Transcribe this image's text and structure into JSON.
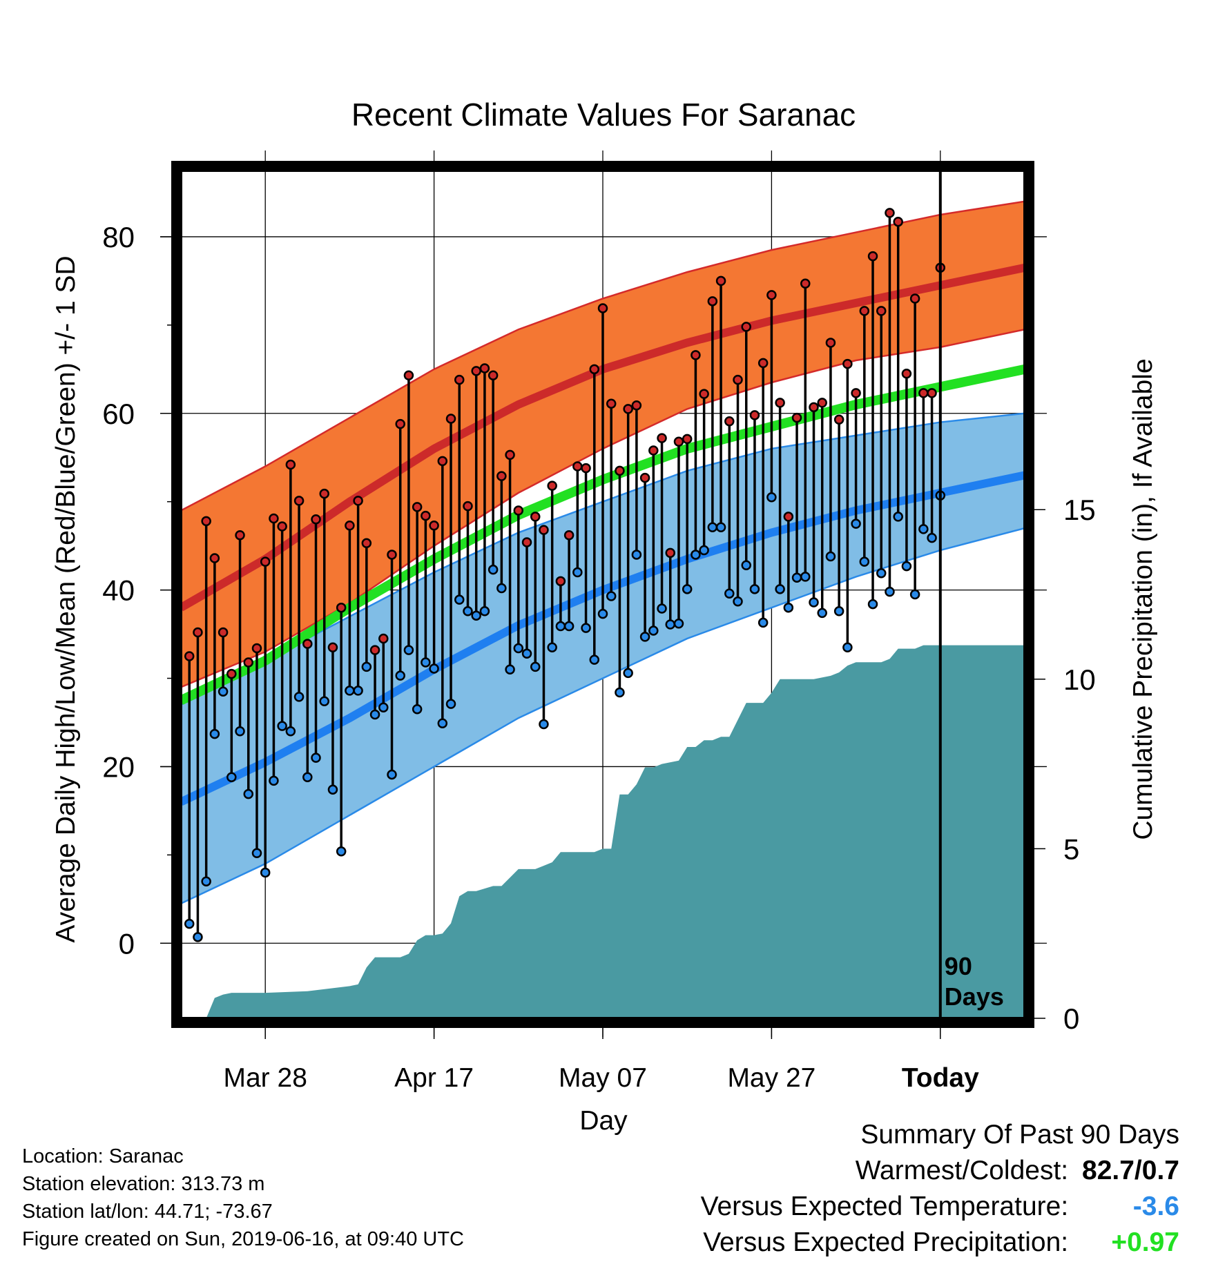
{
  "chart_data": {
    "type": "line",
    "title": "Recent Climate Values For Saranac",
    "xlabel": "Day",
    "ylabel": "Average Daily High/Low/Mean (Red/Blue/Green) +/- 1 SD",
    "y2label": "Cumulative Precipitation (in), If Available",
    "x_range_days": [
      0,
      100
    ],
    "ylim": [
      -8.5,
      87.5
    ],
    "y_ticks": [
      0,
      20,
      40,
      60,
      80
    ],
    "y2lim": [
      0,
      25
    ],
    "y2_ticks": [
      0,
      5,
      10,
      15
    ],
    "x_tick_days": [
      10,
      30,
      50,
      70,
      90
    ],
    "x_tick_labels": [
      "Mar 28",
      "Apr 17",
      "May 07",
      "May 27",
      "Today"
    ],
    "today_day": 90,
    "today_label_line1": "90",
    "today_label_line2": "Days",
    "grid": true,
    "colors": {
      "high_band": "#f47733",
      "high_edge": "#d42a2a",
      "high_mean": "#cc2a2a",
      "low_band": "#80bde6",
      "low_edge": "#2a8ae8",
      "low_mean": "#1f7ff0",
      "mean": "#22e022",
      "precip": "#4a9aa2",
      "high_point": "#cc2a2a",
      "low_point": "#2a8ae8",
      "stem": "#000000",
      "today_line": "#000000"
    },
    "normals_days": [
      0,
      10,
      20,
      30,
      40,
      50,
      60,
      70,
      80,
      90,
      100
    ],
    "normal_high": [
      38.0,
      43.5,
      50.0,
      56.0,
      61.0,
      65.0,
      68.0,
      70.5,
      72.5,
      74.5,
      76.5
    ],
    "normal_high_upper": [
      49.0,
      54.0,
      59.5,
      65.0,
      69.5,
      73.0,
      76.0,
      78.5,
      80.5,
      82.5,
      84.0
    ],
    "normal_high_lower": [
      29.0,
      33.0,
      38.5,
      45.0,
      51.0,
      56.0,
      60.5,
      63.5,
      66.0,
      67.5,
      69.5
    ],
    "normal_mean": [
      27.5,
      32.0,
      38.0,
      43.5,
      48.5,
      52.5,
      56.0,
      58.5,
      61.0,
      63.0,
      65.0
    ],
    "normal_low": [
      16.0,
      20.5,
      25.5,
      31.0,
      36.0,
      40.0,
      43.5,
      46.5,
      49.0,
      51.0,
      53.0
    ],
    "normal_low_upper": [
      27.0,
      32.0,
      37.0,
      42.0,
      46.5,
      50.0,
      53.5,
      56.0,
      57.5,
      59.0,
      60.0
    ],
    "normal_low_lower": [
      4.5,
      9.0,
      14.5,
      20.0,
      25.5,
      30.0,
      34.5,
      38.0,
      41.5,
      44.5,
      47.0
    ],
    "series": [
      {
        "name": "High",
        "x": [
          1,
          2,
          3,
          4,
          5,
          6,
          7,
          8,
          9,
          10,
          11,
          12,
          13,
          14,
          15,
          16,
          17,
          18,
          19,
          20,
          21,
          22,
          23,
          24,
          25,
          26,
          27,
          28,
          29,
          30,
          31,
          32,
          33,
          34,
          35,
          36,
          37,
          38,
          39,
          40,
          41,
          42,
          43,
          44,
          45,
          46,
          47,
          48,
          49,
          50,
          51,
          52,
          53,
          54,
          55,
          56,
          57,
          58,
          59,
          60,
          61,
          62,
          63,
          64,
          65,
          66,
          67,
          68,
          69,
          70,
          71,
          72,
          73,
          74,
          75,
          76,
          77,
          78,
          79,
          80,
          81,
          82,
          83,
          84,
          85,
          86,
          87,
          88,
          89,
          90
        ],
        "values": [
          32.5,
          35.2,
          47.8,
          43.6,
          35.2,
          30.5,
          46.2,
          31.8,
          33.4,
          43.2,
          48.1,
          47.2,
          54.2,
          50.1,
          33.9,
          48.0,
          50.9,
          33.5,
          38.0,
          47.3,
          50.1,
          45.3,
          33.2,
          34.5,
          44.0,
          58.8,
          64.3,
          49.4,
          48.4,
          47.3,
          54.6,
          59.4,
          63.8,
          49.5,
          64.8,
          65.1,
          64.3,
          52.9,
          55.3,
          49.0,
          45.4,
          48.3,
          46.8,
          51.8,
          41.0,
          46.2,
          54.0,
          53.8,
          65.0,
          71.9,
          61.1,
          53.5,
          60.5,
          60.9,
          52.7,
          55.8,
          57.2,
          44.2,
          56.8,
          57.1,
          66.6,
          62.2,
          72.7,
          75.0,
          59.1,
          63.8,
          69.8,
          59.8,
          65.7,
          73.4,
          61.2,
          48.3,
          59.5,
          74.7,
          60.7,
          61.2,
          68.0,
          59.3,
          65.6,
          62.3,
          71.6,
          77.8,
          71.6,
          82.7,
          81.7,
          64.5,
          73.0,
          62.3,
          62.3,
          76.5
        ]
      },
      {
        "name": "Low",
        "x": [
          1,
          2,
          3,
          4,
          5,
          6,
          7,
          8,
          9,
          10,
          11,
          12,
          13,
          14,
          15,
          16,
          17,
          18,
          19,
          20,
          21,
          22,
          23,
          24,
          25,
          26,
          27,
          28,
          29,
          30,
          31,
          32,
          33,
          34,
          35,
          36,
          37,
          38,
          39,
          40,
          41,
          42,
          43,
          44,
          45,
          46,
          47,
          48,
          49,
          50,
          51,
          52,
          53,
          54,
          55,
          56,
          57,
          58,
          59,
          60,
          61,
          62,
          63,
          64,
          65,
          66,
          67,
          68,
          69,
          70,
          71,
          72,
          73,
          74,
          75,
          76,
          77,
          78,
          79,
          80,
          81,
          82,
          83,
          84,
          85,
          86,
          87,
          88,
          89,
          90
        ],
        "values": [
          2.2,
          0.7,
          7.0,
          23.7,
          28.5,
          18.8,
          24.0,
          16.9,
          10.2,
          8.0,
          18.4,
          24.6,
          24.0,
          27.9,
          18.8,
          21.0,
          27.4,
          17.4,
          10.4,
          28.6,
          28.6,
          31.3,
          25.9,
          26.7,
          19.1,
          30.3,
          33.2,
          26.5,
          31.8,
          31.1,
          24.9,
          27.1,
          38.9,
          37.6,
          37.1,
          37.6,
          42.3,
          40.2,
          31.0,
          33.4,
          32.8,
          31.3,
          24.8,
          33.5,
          35.9,
          35.9,
          42.0,
          35.7,
          32.1,
          37.3,
          39.3,
          28.4,
          30.6,
          44.0,
          34.7,
          35.4,
          37.9,
          36.1,
          36.2,
          40.1,
          44.0,
          44.5,
          47.1,
          47.1,
          39.6,
          38.7,
          42.8,
          40.1,
          36.3,
          50.5,
          40.1,
          38.0,
          41.4,
          41.5,
          38.6,
          37.4,
          43.8,
          37.6,
          33.5,
          47.5,
          43.2,
          38.4,
          41.9,
          39.8,
          48.3,
          42.7,
          39.5,
          46.9,
          45.9,
          50.7
        ]
      }
    ],
    "precip_x": [
      0,
      3,
      4,
      5,
      6,
      10,
      15,
      20,
      21,
      22,
      23,
      26,
      27,
      28,
      29,
      30,
      31,
      32,
      33,
      34,
      35,
      37,
      38,
      40,
      42,
      43,
      44,
      45,
      46,
      48,
      49,
      50,
      51,
      52,
      53,
      54,
      55,
      56,
      57,
      59,
      60,
      61,
      62,
      63,
      64,
      65,
      67,
      68,
      69,
      70,
      71,
      72,
      73,
      74,
      75,
      77,
      78,
      79,
      80,
      81,
      82,
      83,
      84,
      85,
      86,
      87,
      88,
      90,
      100
    ],
    "precip": [
      0,
      0,
      0.6,
      0.7,
      0.75,
      0.75,
      0.8,
      0.95,
      1.0,
      1.5,
      1.8,
      1.8,
      1.9,
      2.3,
      2.45,
      2.45,
      2.5,
      2.8,
      3.6,
      3.75,
      3.75,
      3.9,
      3.9,
      4.4,
      4.4,
      4.5,
      4.6,
      4.9,
      4.9,
      4.9,
      4.9,
      5.0,
      5.0,
      6.6,
      6.6,
      6.9,
      7.4,
      7.4,
      7.5,
      7.6,
      8.0,
      8.0,
      8.2,
      8.2,
      8.3,
      8.3,
      9.3,
      9.3,
      9.3,
      9.6,
      10.0,
      10.0,
      10.0,
      10.0,
      10.0,
      10.1,
      10.2,
      10.4,
      10.5,
      10.5,
      10.5,
      10.5,
      10.6,
      10.9,
      10.9,
      10.9,
      11.0,
      11.0,
      11.0
    ]
  },
  "footer": {
    "location": "Location: Saranac",
    "elevation": "Station elevation: 313.73 m",
    "latlon": "Station lat/lon: 44.71; -73.67",
    "created": "Figure created on Sun, 2019-06-16, at 09:40 UTC"
  },
  "summary": {
    "title": "Summary Of Past 90 Days",
    "warm_cold_label": "Warmest/Coldest:",
    "warm_cold_value": "82.7/0.7",
    "temp_label": "Versus Expected Temperature:",
    "temp_value": "-3.6",
    "temp_color": "#2a8ae8",
    "precip_label": "Versus Expected Precipitation:",
    "precip_value": "+0.97",
    "precip_color": "#22e022"
  }
}
